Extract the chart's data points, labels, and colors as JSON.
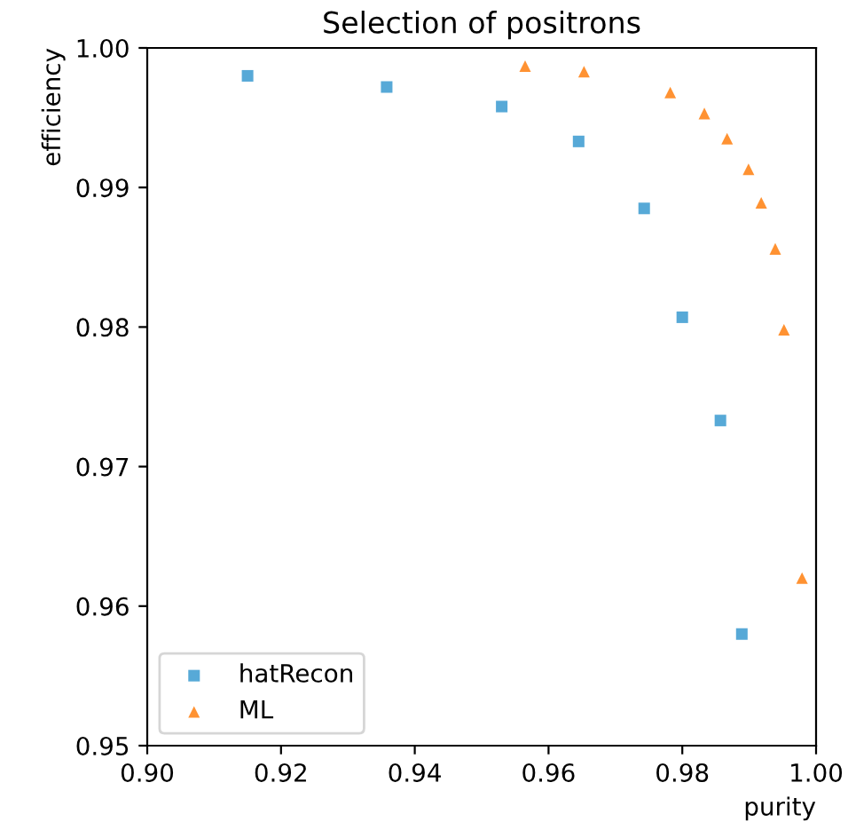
{
  "chart_data": {
    "type": "scatter",
    "title": "Selection of positrons",
    "xlabel": "purity",
    "ylabel": "efficiency",
    "xlim": [
      0.9,
      1.0
    ],
    "ylim": [
      0.95,
      1.0
    ],
    "xticks": [
      {
        "value": 0.9,
        "label": "0.90"
      },
      {
        "value": 0.92,
        "label": "0.92"
      },
      {
        "value": 0.94,
        "label": "0.94"
      },
      {
        "value": 0.96,
        "label": "0.96"
      },
      {
        "value": 0.98,
        "label": "0.98"
      },
      {
        "value": 1.0,
        "label": "1.00"
      }
    ],
    "yticks": [
      {
        "value": 0.95,
        "label": "0.95"
      },
      {
        "value": 0.96,
        "label": "0.96"
      },
      {
        "value": 0.97,
        "label": "0.97"
      },
      {
        "value": 0.98,
        "label": "0.98"
      },
      {
        "value": 0.99,
        "label": "0.99"
      },
      {
        "value": 1.0,
        "label": "1.00"
      }
    ],
    "legend": "bottom left",
    "grid": false,
    "series": [
      {
        "name": "hatRecon",
        "color": "#3a9ad0",
        "marker": "square",
        "x": [
          0.915,
          0.9358,
          0.953,
          0.9645,
          0.9743,
          0.98,
          0.9857,
          0.9889
        ],
        "values": [
          0.998,
          0.9972,
          0.9958,
          0.9933,
          0.9885,
          0.9807,
          0.9733,
          0.958
        ]
      },
      {
        "name": "ML",
        "color": "#ff7f0e",
        "marker": "triangle",
        "x": [
          0.9565,
          0.9653,
          0.9782,
          0.9833,
          0.9867,
          0.9899,
          0.9918,
          0.9939,
          0.9952,
          0.9979
        ],
        "values": [
          0.9987,
          0.9983,
          0.9968,
          0.9953,
          0.9935,
          0.9913,
          0.9889,
          0.9856,
          0.9798,
          0.962
        ]
      }
    ]
  }
}
